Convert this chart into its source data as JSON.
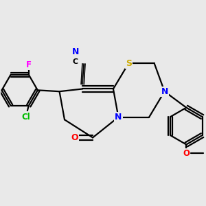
{
  "bg_color": "#e9e9e9",
  "bond_color": "#000000",
  "bond_width": 1.6,
  "atom_colors": {
    "N": "#0000ff",
    "S": "#ccaa00",
    "O": "#ff0000",
    "Cl": "#00bb00",
    "F": "#ff00ff",
    "C": "#000000",
    "CN_label": "#0000ff"
  },
  "figsize": [
    3.0,
    3.0
  ],
  "dpi": 100
}
